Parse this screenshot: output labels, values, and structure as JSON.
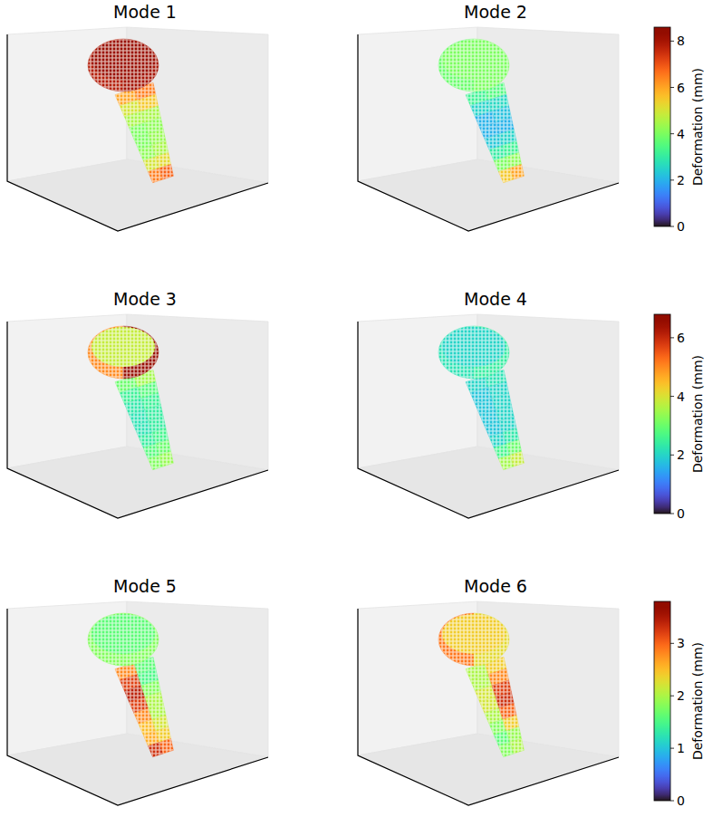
{
  "chart_data": [
    {
      "type": "point_cloud",
      "colorbar": {
        "label": "Deformation (mm)",
        "range": [
          0,
          8.6
        ],
        "ticks": [
          0,
          2,
          4,
          6,
          8
        ]
      },
      "panels": [
        {
          "title": "Mode 1",
          "head": 8.2,
          "rim": [
            7.8,
            8.0
          ],
          "shaft": [
            [
              6.0,
              6.5
            ],
            [
              5.0,
              5.5
            ],
            [
              4.5,
              4.5
            ],
            [
              4.0,
              4.2
            ],
            [
              4.0,
              4.3
            ],
            [
              4.2,
              4.5
            ],
            [
              5.0,
              5.2
            ],
            [
              6.5,
              6.8
            ]
          ]
        },
        {
          "title": "Mode 2",
          "head": 4.0,
          "rim": [
            3.8,
            4.0
          ],
          "shaft": [
            [
              3.2,
              3.5
            ],
            [
              2.5,
              2.6
            ],
            [
              2.0,
              2.2
            ],
            [
              2.0,
              2.0
            ],
            [
              2.3,
              2.5
            ],
            [
              3.0,
              3.2
            ],
            [
              4.0,
              4.2
            ],
            [
              5.5,
              6.0
            ]
          ]
        }
      ]
    },
    {
      "type": "point_cloud",
      "colorbar": {
        "label": "Deformation (mm)",
        "range": [
          0,
          6.8
        ],
        "ticks": [
          0,
          2,
          4,
          6
        ]
      },
      "panels": [
        {
          "title": "Mode 3",
          "head": 3.8,
          "rim": [
            5.0,
            6.5
          ],
          "shaft": [
            [
              3.0,
              3.5
            ],
            [
              2.5,
              2.8
            ],
            [
              2.3,
              2.5
            ],
            [
              2.2,
              2.4
            ],
            [
              2.2,
              2.4
            ],
            [
              2.4,
              2.6
            ],
            [
              2.8,
              3.0
            ],
            [
              3.2,
              3.4
            ]
          ]
        },
        {
          "title": "Mode 4",
          "head": 2.0,
          "rim": [
            2.2,
            2.4
          ],
          "shaft": [
            [
              2.0,
              2.2
            ],
            [
              1.8,
              2.0
            ],
            [
              1.8,
              2.0
            ],
            [
              1.8,
              2.0
            ],
            [
              1.8,
              2.0
            ],
            [
              2.0,
              2.3
            ],
            [
              2.6,
              3.0
            ],
            [
              3.5,
              3.8
            ]
          ]
        }
      ]
    },
    {
      "type": "point_cloud",
      "colorbar": {
        "label": "Deformation (mm)",
        "range": [
          0,
          3.8
        ],
        "ticks": [
          0,
          1,
          2,
          3
        ]
      },
      "panels": [
        {
          "title": "Mode 5",
          "head": 1.6,
          "rim": [
            1.8,
            1.8
          ],
          "shaft": [
            [
              2.8,
              1.6
            ],
            [
              3.2,
              1.5
            ],
            [
              3.4,
              1.8
            ],
            [
              3.2,
              2.0
            ],
            [
              2.8,
              2.0
            ],
            [
              2.5,
              2.2
            ],
            [
              2.6,
              2.4
            ],
            [
              3.3,
              3.0
            ]
          ]
        },
        {
          "title": "Mode 6",
          "head": 2.4,
          "rim": [
            2.9,
            2.3
          ],
          "shaft": [
            [
              2.0,
              2.4
            ],
            [
              2.0,
              2.8
            ],
            [
              2.2,
              3.2
            ],
            [
              2.2,
              3.3
            ],
            [
              2.0,
              3.0
            ],
            [
              1.8,
              2.4
            ],
            [
              1.6,
              1.9
            ],
            [
              1.8,
              2.0
            ]
          ]
        }
      ]
    }
  ]
}
